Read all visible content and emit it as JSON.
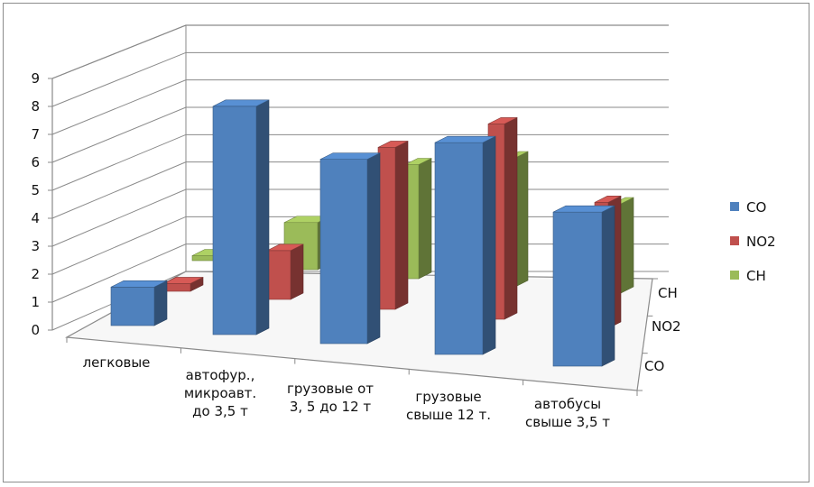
{
  "chart_data": {
    "type": "bar",
    "style": "3d-clustered-columns",
    "categories": [
      [
        "легковые"
      ],
      [
        "автофур.,",
        "микроавт.",
        "до 3,5 т"
      ],
      [
        "грузовые от",
        "3, 5 до 12 т"
      ],
      [
        "грузовые",
        "свыше 12 т."
      ],
      [
        "автобусы",
        "свыше 3,5 т"
      ]
    ],
    "series": [
      {
        "name": "CO",
        "color": "#4F81BD",
        "values": [
          1.4,
          8.3,
          6.7,
          7.7,
          5.6
        ]
      },
      {
        "name": "NO2",
        "color": "#C0504D",
        "values": [
          0.3,
          1.9,
          6.3,
          7.6,
          4.9
        ]
      },
      {
        "name": "CH",
        "color": "#9BBB59",
        "values": [
          0.2,
          1.9,
          4.6,
          5.2,
          3.6
        ]
      }
    ],
    "ylim": [
      0,
      9
    ],
    "yticks": [
      "0",
      "1",
      "2",
      "3",
      "4",
      "5",
      "6",
      "7",
      "8",
      "9"
    ],
    "depth_labels": [
      "CH",
      "NO2",
      "CO"
    ],
    "legend": [
      "CO",
      "NO2",
      "CH"
    ],
    "legend_position": "right",
    "grid": true
  }
}
